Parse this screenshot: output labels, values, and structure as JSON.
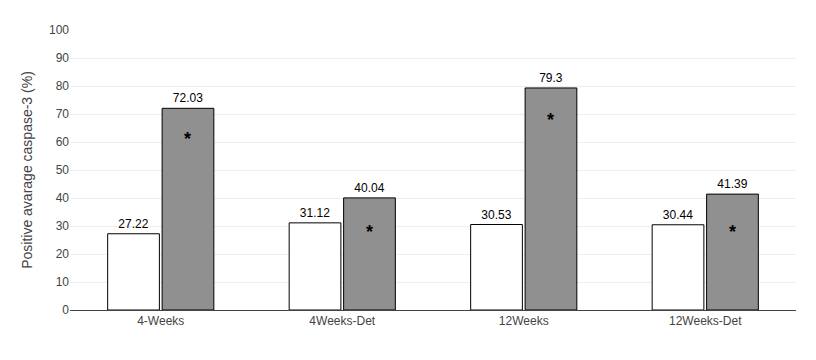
{
  "chart_data": {
    "type": "bar",
    "categories": [
      "4-Weeks",
      "4Weeks-Det",
      "12Weeks",
      "12Weeks-Det"
    ],
    "series": [
      {
        "color": "#ffffff",
        "values": [
          27.22,
          31.12,
          30.53,
          30.44
        ]
      },
      {
        "color": "#909090",
        "values": [
          72.03,
          40.04,
          79.3,
          41.39
        ]
      }
    ],
    "ylabel": "Positive avarage caspase-3 (%)",
    "ylim": [
      0,
      100
    ],
    "yticks": [
      0,
      10,
      20,
      30,
      40,
      50,
      60,
      70,
      80,
      90,
      100
    ],
    "grid": true,
    "data_labels": true,
    "annotations": [
      {
        "text": "*",
        "x": "4-Weeks",
        "y": 61
      },
      {
        "text": "*",
        "x": "4Weeks-Det",
        "y": 28
      },
      {
        "text": "*",
        "x": "12Weeks",
        "y": 68
      },
      {
        "text": "*",
        "x": "12Weeks-Det",
        "y": 28
      }
    ]
  }
}
